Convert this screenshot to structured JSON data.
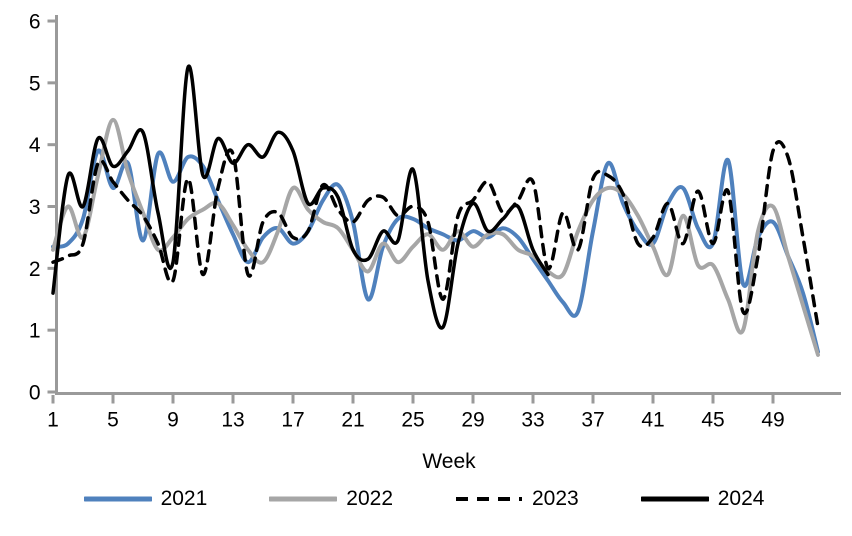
{
  "chart_data": {
    "type": "line",
    "title": "",
    "xlabel": "Week",
    "ylabel": "",
    "x_start_week": 1,
    "x_end_week": 52,
    "x_ticks": [
      1,
      5,
      9,
      13,
      17,
      21,
      25,
      29,
      33,
      37,
      41,
      45,
      49
    ],
    "y_ticks": [
      0,
      1,
      2,
      3,
      4,
      5,
      6
    ],
    "ylim": [
      0,
      6
    ],
    "grid": false,
    "legend_position": "bottom",
    "axis_color": "#9a9a9a",
    "text_color": "#000000",
    "series": [
      {
        "name": "2021",
        "color": "#4f81bd",
        "style": "solid",
        "width": 4,
        "values": [
          2.35,
          2.4,
          2.8,
          3.9,
          3.3,
          3.7,
          2.45,
          3.85,
          3.4,
          3.8,
          3.65,
          3.1,
          2.55,
          2.1,
          2.5,
          2.65,
          2.4,
          2.6,
          3.1,
          3.35,
          2.75,
          1.5,
          2.35,
          2.8,
          2.8,
          2.65,
          2.55,
          2.45,
          2.6,
          2.5,
          2.65,
          2.5,
          2.15,
          1.8,
          1.45,
          1.3,
          2.6,
          3.7,
          3.05,
          2.6,
          2.4,
          3.05,
          3.3,
          2.65,
          2.4,
          3.75,
          1.75,
          2.5,
          2.75,
          2.2,
          1.6,
          0.65
        ]
      },
      {
        "name": "2022",
        "color": "#a6a6a6",
        "style": "solid",
        "width": 4,
        "values": [
          2.3,
          3.0,
          2.5,
          3.5,
          4.4,
          3.55,
          2.9,
          2.3,
          2.5,
          2.8,
          2.95,
          3.05,
          2.7,
          2.3,
          2.1,
          2.6,
          3.3,
          2.95,
          2.75,
          2.65,
          2.3,
          1.95,
          2.4,
          2.1,
          2.35,
          2.55,
          2.3,
          2.6,
          2.35,
          2.55,
          2.55,
          2.3,
          2.2,
          1.95,
          1.9,
          2.6,
          3.1,
          3.3,
          3.2,
          2.85,
          2.35,
          1.9,
          2.85,
          2.05,
          2.05,
          1.5,
          1.0,
          2.6,
          3.0,
          2.2,
          1.4,
          0.6
        ]
      },
      {
        "name": "2023",
        "color": "#000000",
        "style": "dashed",
        "width": 3.5,
        "values": [
          2.1,
          2.2,
          2.4,
          3.7,
          3.4,
          3.1,
          2.85,
          2.4,
          1.8,
          3.45,
          1.9,
          3.3,
          3.85,
          1.9,
          2.75,
          2.9,
          2.5,
          2.6,
          3.35,
          2.95,
          2.75,
          3.1,
          3.15,
          2.85,
          3.0,
          2.75,
          1.5,
          2.85,
          3.1,
          3.4,
          2.9,
          3.1,
          3.4,
          2.0,
          2.9,
          2.3,
          3.45,
          3.5,
          3.2,
          2.4,
          2.5,
          3.05,
          2.4,
          3.25,
          2.4,
          3.25,
          1.3,
          2.2,
          3.9,
          3.8,
          2.5,
          1.05
        ]
      },
      {
        "name": "2024",
        "color": "#000000",
        "style": "solid",
        "width": 3.5,
        "values": [
          1.6,
          3.5,
          3.0,
          4.1,
          3.65,
          3.9,
          4.2,
          2.9,
          2.1,
          5.25,
          3.5,
          4.1,
          3.7,
          4.0,
          3.8,
          4.2,
          3.9,
          3.05,
          3.3,
          3.15,
          2.3,
          2.15,
          2.6,
          2.45,
          3.6,
          1.8,
          1.05,
          2.4,
          3.05,
          2.6,
          2.8,
          3.0,
          2.3,
          1.9
        ]
      }
    ]
  }
}
